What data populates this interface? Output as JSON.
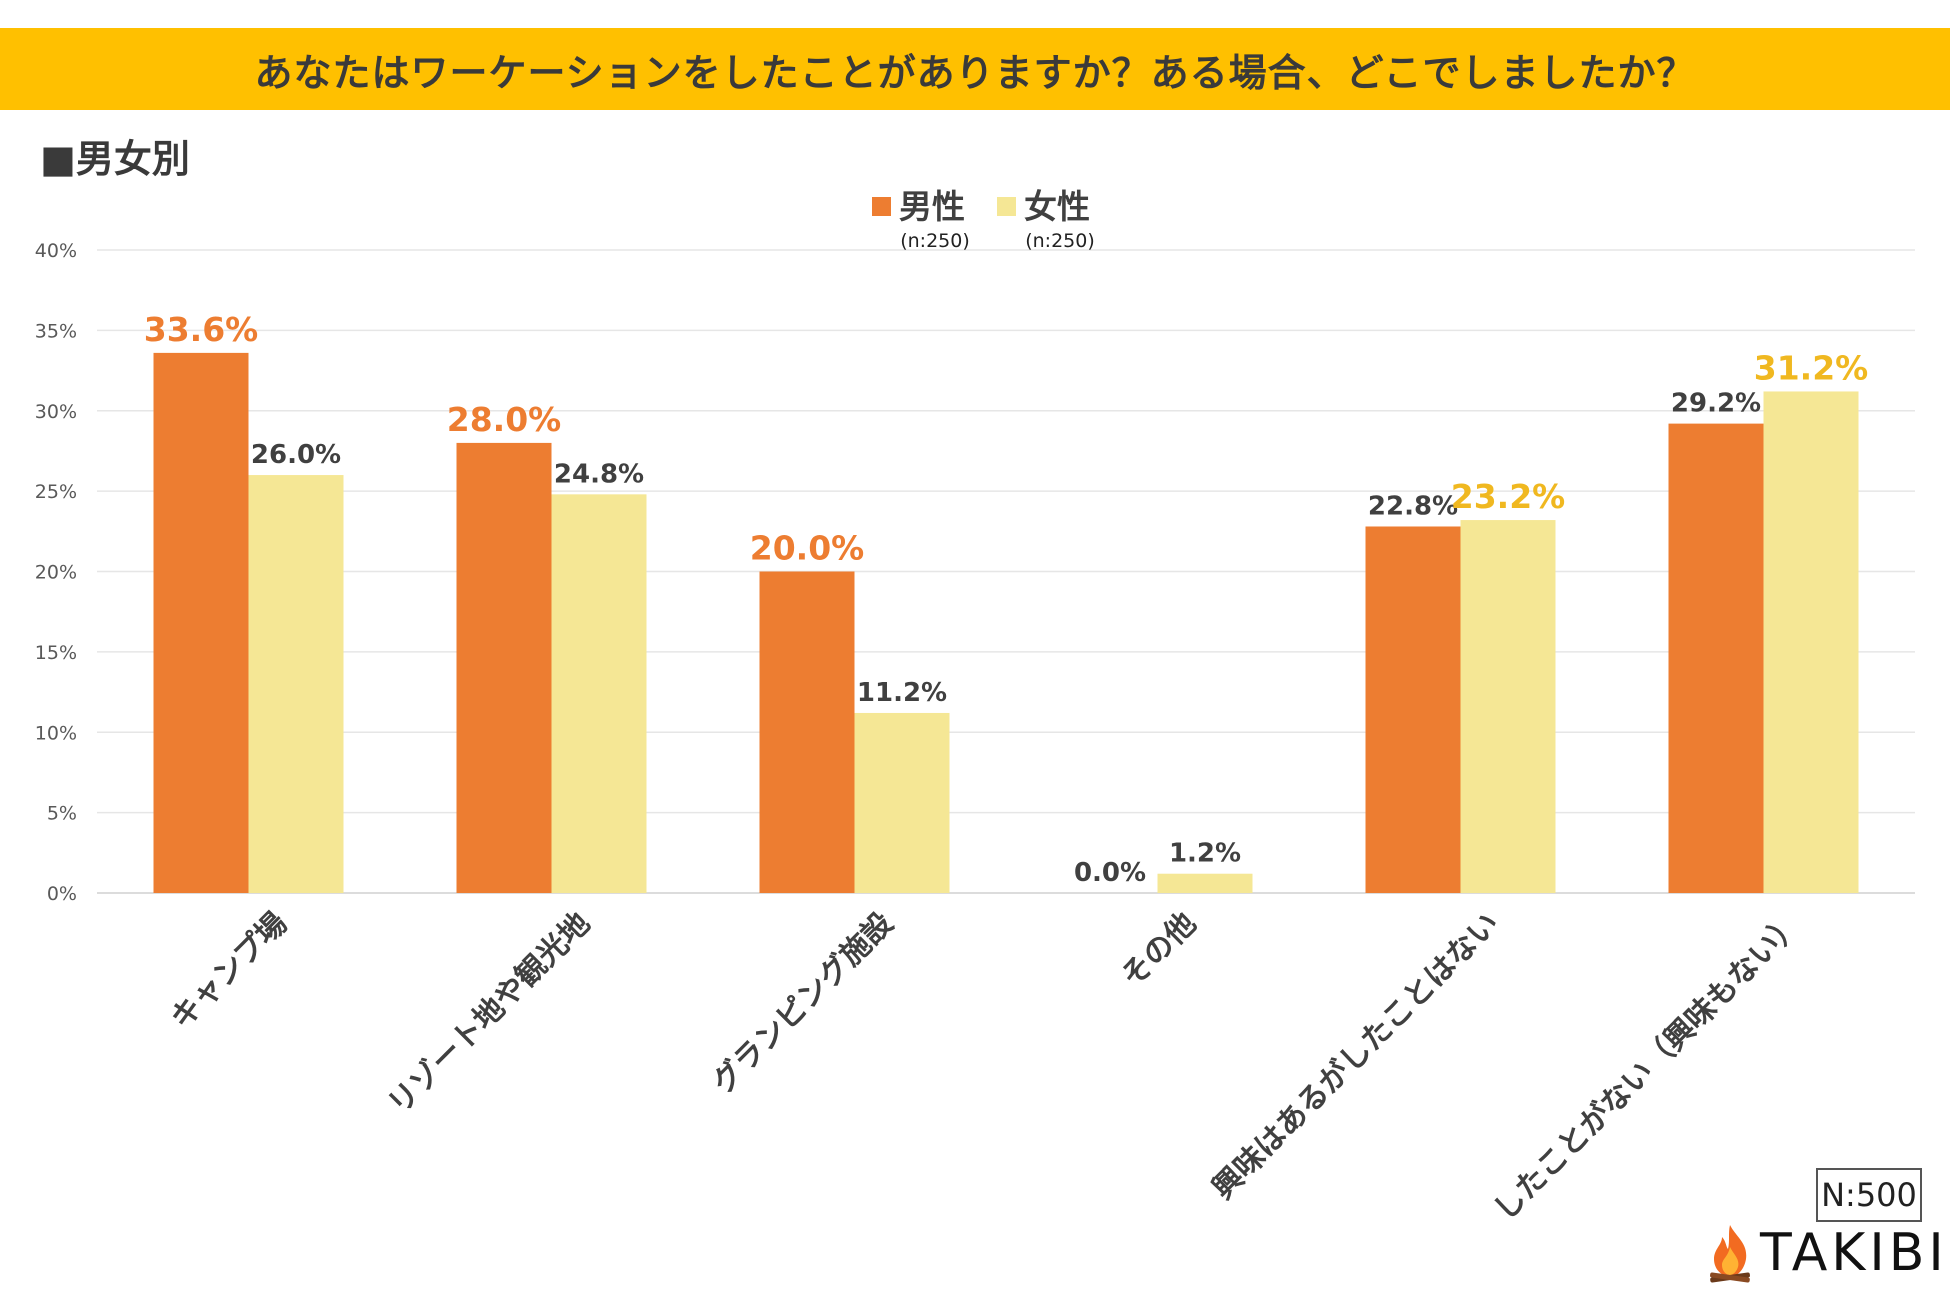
{
  "title": "あなたはワーケーションをしたことがありますか？ある場合、どこでしましたか？",
  "section": {
    "marker": "■",
    "label": "男女別"
  },
  "note": "N:500",
  "brand": {
    "name": "TAKIBI",
    "icon": "flame-icon"
  },
  "colors": {
    "male": "#ED7D31",
    "female": "#F5E795",
    "male_highlight": "#ED7D31",
    "female_highlight": "#F0B820",
    "label_default": "#404040",
    "title_bar": "#FFC000"
  },
  "chart_data": {
    "type": "bar",
    "title": "あなたはワーケーションをしたことがありますか？ある場合、どこでしましたか？",
    "categories": [
      "キャンプ場",
      "リゾート地や観光地",
      "グランピング施設",
      "その他",
      "興味はあるがしたことはない",
      "したことがない（興味もない）"
    ],
    "series": [
      {
        "name": "男性",
        "sub": "(n:250)",
        "values": [
          33.6,
          28.0,
          20.0,
          0.0,
          22.8,
          29.2
        ],
        "labels": [
          "33.6%",
          "28.0%",
          "20.0%",
          "0.0%",
          "22.8%",
          "29.2%"
        ],
        "highlight": [
          true,
          true,
          true,
          false,
          false,
          false
        ]
      },
      {
        "name": "女性",
        "sub": "(n:250)",
        "values": [
          26.0,
          24.8,
          11.2,
          1.2,
          23.2,
          31.2
        ],
        "labels": [
          "26.0%",
          "24.8%",
          "11.2%",
          "1.2%",
          "23.2%",
          "31.2%"
        ],
        "highlight": [
          false,
          false,
          false,
          false,
          true,
          true
        ]
      }
    ],
    "yticks": [
      "0%",
      "5%",
      "10%",
      "15%",
      "20%",
      "25%",
      "30%",
      "35%",
      "40%"
    ],
    "ylim": [
      0,
      40
    ],
    "legend": "top-center",
    "grid": true,
    "xlabel": "",
    "ylabel": ""
  }
}
